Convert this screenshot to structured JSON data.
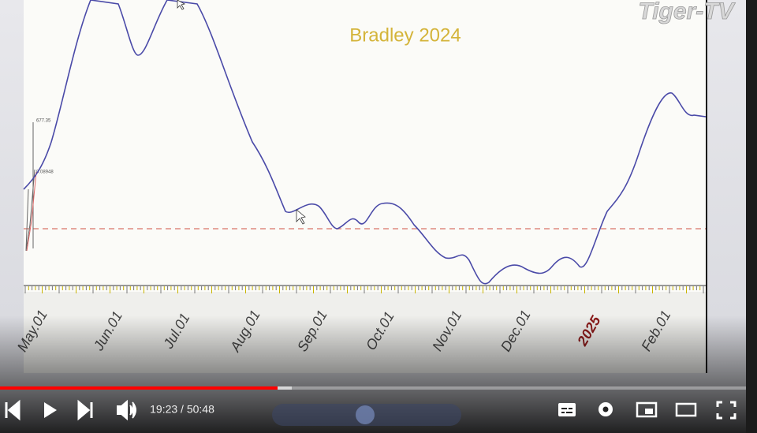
{
  "watermark": "Tiger-TV",
  "chart": {
    "title": "Bradley 2024",
    "x_labels": [
      "May.01",
      "Jun.01",
      "Jul.01",
      "Aug.01",
      "Sep.01",
      "Oct.01",
      "Nov.01",
      "Dec.01",
      "2025",
      "Feb.01"
    ],
    "side_labels": [
      "677.35",
      "0.08948"
    ]
  },
  "player": {
    "time": "19:23 / 50:48"
  }
}
